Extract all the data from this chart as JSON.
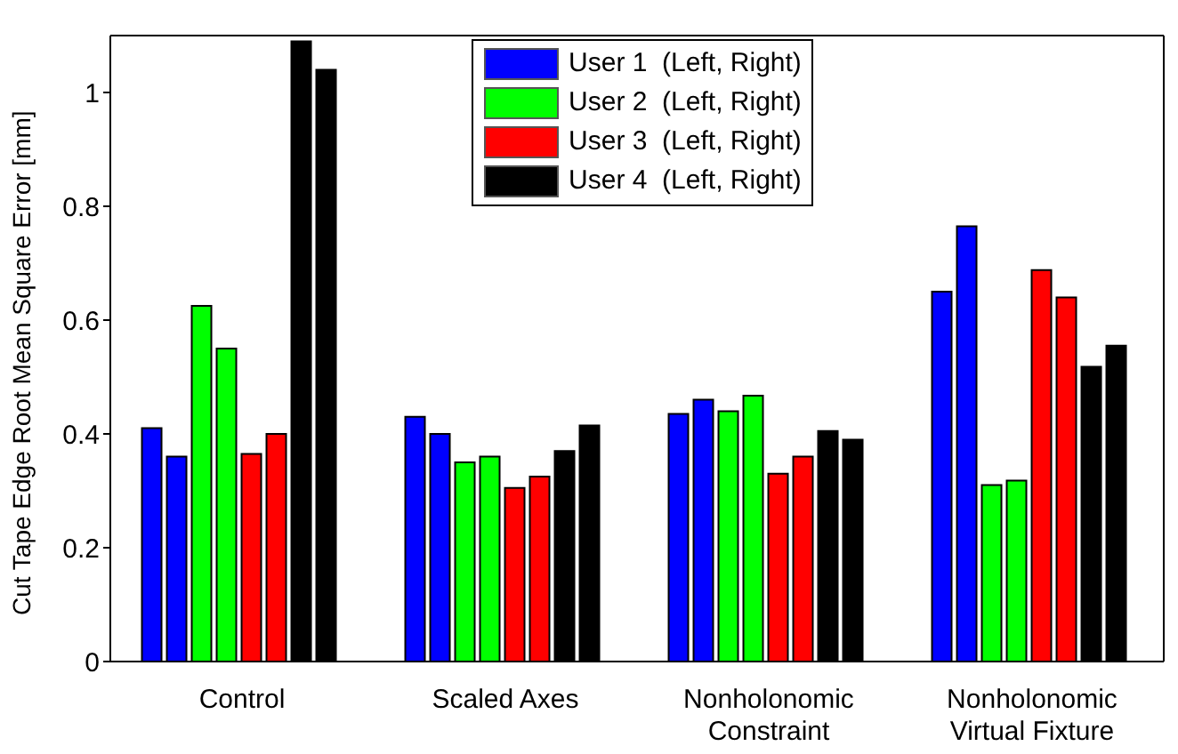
{
  "chart_data": {
    "type": "bar",
    "ylabel": "Cut Tape Edge Root Mean Square Error [mm]",
    "categories": [
      "Control",
      "Scaled Axes",
      "Nonholonomic Constraint",
      "Nonholonomic Virtual Fixture"
    ],
    "series": [
      {
        "name": "User 1  (Left, Right)",
        "color": "#0000ff",
        "values": [
          0.41,
          0.43,
          0.435,
          0.65
        ]
      },
      {
        "color": "#0000ff",
        "values": [
          0.36,
          0.4,
          0.46,
          0.765
        ]
      },
      {
        "name": "User 2  (Left, Right)",
        "color": "#00ff00",
        "values": [
          0.625,
          0.35,
          0.44,
          0.31
        ]
      },
      {
        "color": "#00ff00",
        "values": [
          0.55,
          0.36,
          0.467,
          0.318
        ]
      },
      {
        "name": "User 3  (Left, Right)",
        "color": "#ff0000",
        "values": [
          0.365,
          0.305,
          0.33,
          0.688
        ]
      },
      {
        "color": "#ff0000",
        "values": [
          0.4,
          0.325,
          0.36,
          0.64
        ]
      },
      {
        "name": "User 4  (Left, Right)",
        "color": "#000000",
        "values": [
          1.09,
          0.37,
          0.405,
          0.518
        ]
      },
      {
        "color": "#000000",
        "values": [
          1.04,
          0.415,
          0.39,
          0.555
        ]
      }
    ],
    "ylim": [
      0,
      1.1
    ],
    "yticks": [
      0,
      0.2,
      0.4,
      0.6,
      0.8,
      1
    ],
    "legend": "top",
    "grid": false
  }
}
